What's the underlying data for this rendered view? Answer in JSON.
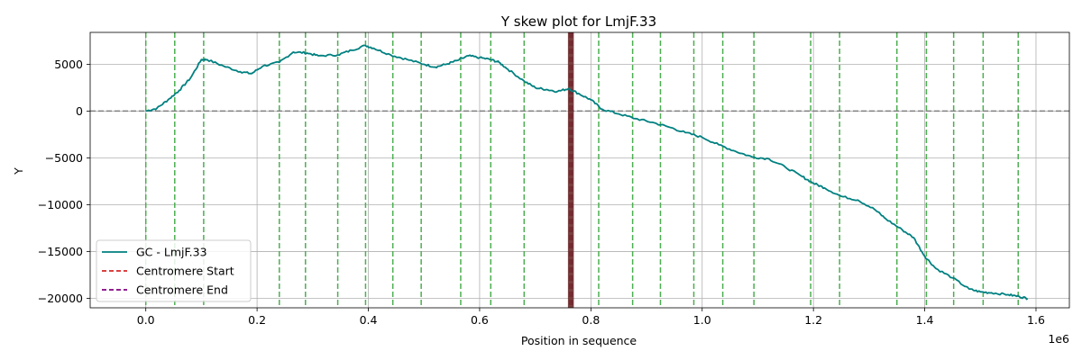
{
  "chart_data": {
    "type": "line",
    "title": "Y skew plot for LmjF.33",
    "xlabel": "Position in sequence",
    "ylabel": "Y",
    "x_offset_text": "1e6",
    "xlim": [
      -100000,
      1660000
    ],
    "ylim": [
      -21000,
      8400
    ],
    "x_ticks": [
      0,
      200000,
      400000,
      600000,
      800000,
      1000000,
      1200000,
      1400000,
      1600000
    ],
    "x_tick_labels": [
      "0.0",
      "0.2",
      "0.4",
      "0.6",
      "0.8",
      "1.0",
      "1.2",
      "1.4",
      "1.6"
    ],
    "y_ticks": [
      -20000,
      -15000,
      -10000,
      -5000,
      0,
      5000
    ],
    "y_tick_labels": [
      "−20000",
      "−15000",
      "−10000",
      "−5000",
      "0",
      "5000"
    ],
    "grid": true,
    "legend_position": "lower-left",
    "colors": {
      "series": "#008080",
      "centromere_start": "#d62728",
      "centromere_end": "#800080",
      "markers": "#4caf50",
      "zero_line": "#808080",
      "centromere_overlap": "#6b2a2a"
    },
    "series": [
      {
        "name": "GC - LmjF.33",
        "x": [
          0,
          20000,
          40000,
          60000,
          80000,
          100000,
          110000,
          140000,
          170000,
          190000,
          210000,
          240000,
          265000,
          290000,
          310000,
          345000,
          370000,
          395000,
          410000,
          440000,
          470000,
          500000,
          520000,
          540000,
          560000,
          580000,
          600000,
          620000,
          635000,
          650000,
          680000,
          700000,
          720000,
          740000,
          760000,
          780000,
          800000,
          820000,
          850000,
          880000,
          910000,
          940000,
          970000,
          1000000,
          1030000,
          1060000,
          1090000,
          1120000,
          1150000,
          1180000,
          1200000,
          1220000,
          1250000,
          1280000,
          1310000,
          1330000,
          1360000,
          1380000,
          1400000,
          1420000,
          1450000,
          1480000,
          1500000,
          1520000,
          1550000,
          1570000,
          1585000
        ],
        "y": [
          0,
          300,
          1200,
          2200,
          3500,
          5500,
          5500,
          4800,
          4200,
          4000,
          4800,
          5200,
          6300,
          6200,
          5900,
          6000,
          6500,
          7000,
          6700,
          6000,
          5500,
          5000,
          4700,
          5000,
          5400,
          5900,
          5700,
          5500,
          5200,
          4500,
          3200,
          2500,
          2300,
          2100,
          2400,
          1800,
          1200,
          200,
          -300,
          -800,
          -1200,
          -1700,
          -2300,
          -2800,
          -3600,
          -4300,
          -4900,
          -5100,
          -6000,
          -7000,
          -7700,
          -8200,
          -9100,
          -9500,
          -10500,
          -11500,
          -12700,
          -13500,
          -15500,
          -16800,
          -17800,
          -19000,
          -19300,
          -19400,
          -19600,
          -19800,
          -20000
        ]
      },
      {
        "name": "Centromere Start",
        "x_line": 762000
      },
      {
        "name": "Centromere End",
        "x_line": 766000
      }
    ],
    "marker_lines_x": [
      0,
      52000,
      104000,
      240000,
      287000,
      345000,
      395000,
      444000,
      495000,
      566000,
      620000,
      680000,
      814000,
      875000,
      925000,
      985000,
      1037000,
      1093000,
      1195000,
      1247000,
      1350000,
      1403000,
      1452000,
      1505000,
      1568000
    ]
  }
}
